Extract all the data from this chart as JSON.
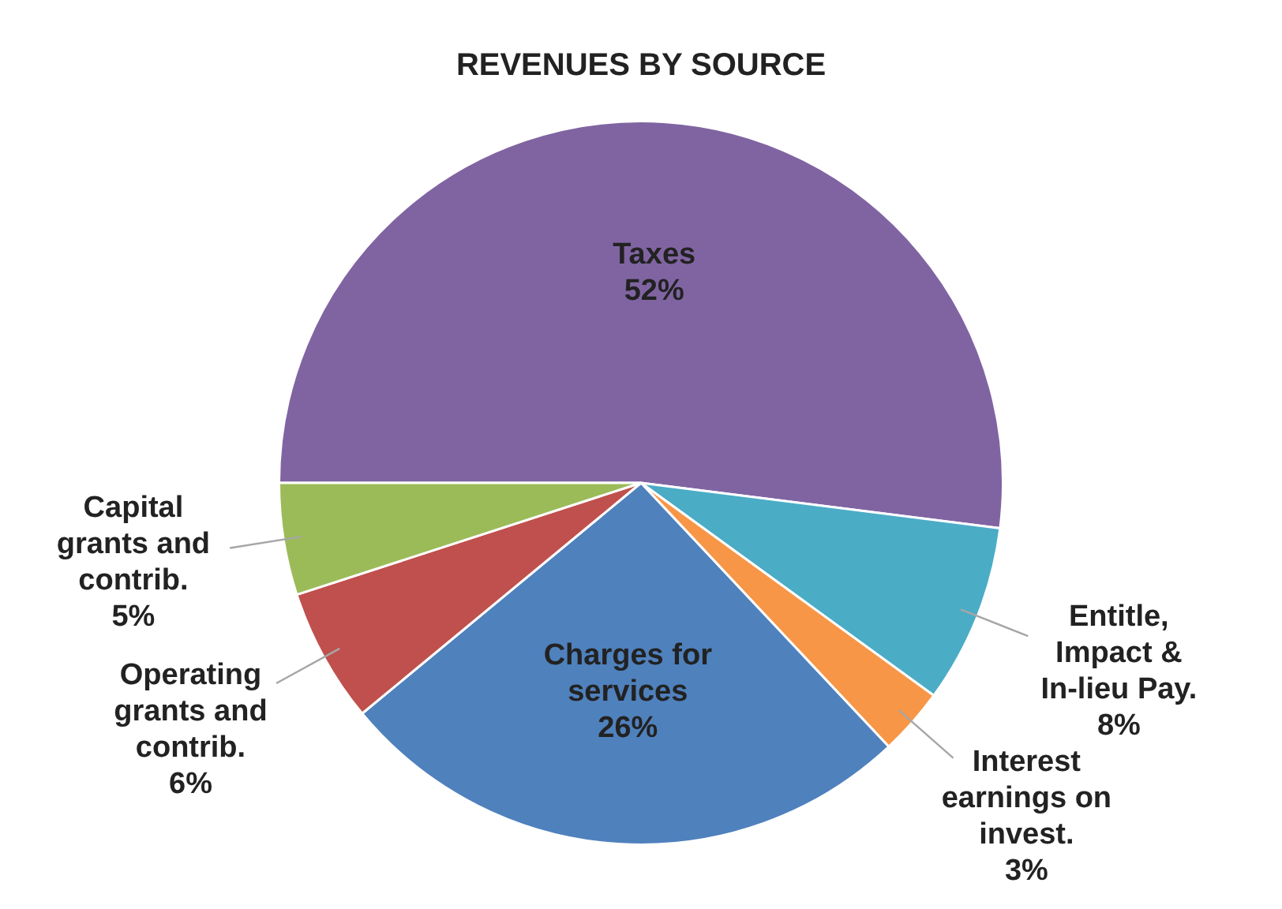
{
  "chart_data": {
    "type": "pie",
    "title": "REVENUES BY SOURCE",
    "categories": [
      "Taxes",
      "Entitle, Impact & In-lieu Pay.",
      "Interest earnings on invest.",
      "Charges for services",
      "Operating grants and contrib.",
      "Capital grants and contrib."
    ],
    "values": [
      52,
      8,
      3,
      26,
      6,
      5
    ],
    "value_labels": [
      "52%",
      "8%",
      "3%",
      "26%",
      "6%",
      "5%"
    ],
    "colors": [
      "#8064a2",
      "#4bacc6",
      "#f79646",
      "#4f81bd",
      "#c0504d",
      "#9bbb59"
    ],
    "legend": false
  }
}
